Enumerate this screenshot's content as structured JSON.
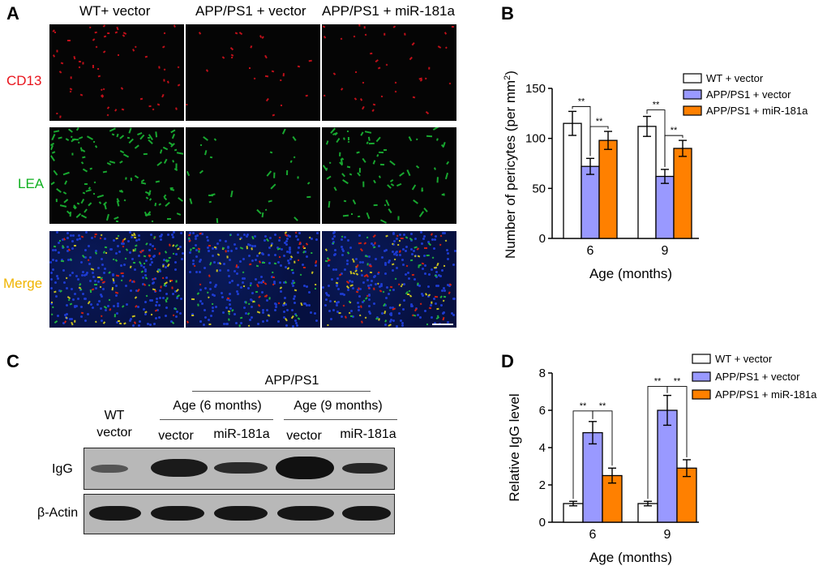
{
  "panels": {
    "a": "A",
    "b": "B",
    "c": "C",
    "d": "D"
  },
  "panel_a": {
    "columns": [
      "WT+ vector",
      "APP/PS1 + vector",
      "APP/PS1 + miR-181a"
    ],
    "rows": [
      {
        "label": "CD13",
        "color": "#e8141c"
      },
      {
        "label": "LEA",
        "color": "#10b020"
      },
      {
        "label": "Merge",
        "color": "#f0b400"
      }
    ]
  },
  "panel_c": {
    "group_title": "APP/PS1",
    "wt_label": "WT",
    "wt_sub": "vector",
    "age6": "Age (6 months)",
    "age9": "Age (9 months)",
    "lane_labels": [
      "vector",
      "miR-181a",
      "vector",
      "miR-181a"
    ],
    "row_labels": [
      "IgG",
      "β-Actin"
    ]
  },
  "chart_data": [
    {
      "type": "bar",
      "id": "B",
      "title": "",
      "categories": [
        "6",
        "9"
      ],
      "xlabel": "Age (months)",
      "ylabel_main": "Number of pericytes (per mm",
      "ylabel_sup": "2",
      "ylabel_end": ")",
      "ylim": [
        0,
        150
      ],
      "yticks": [
        "0",
        "50",
        "100",
        "150"
      ],
      "legend_position": "top-right",
      "series": [
        {
          "name": "WT + vector",
          "color": "#ffffff",
          "values": [
            115,
            112
          ],
          "errors": [
            12,
            10
          ]
        },
        {
          "name": "APP/PS1 + vector",
          "color": "#9999ff",
          "values": [
            72,
            62
          ],
          "errors": [
            8,
            7
          ]
        },
        {
          "name": "APP/PS1 + miR-181a",
          "color": "#ff8000",
          "values": [
            98,
            90
          ],
          "errors": [
            9,
            8
          ]
        }
      ],
      "significance": "**"
    },
    {
      "type": "bar",
      "id": "D",
      "title": "",
      "categories": [
        "6",
        "9"
      ],
      "xlabel": "Age (months)",
      "ylabel_main": "Relative IgG level",
      "ylabel_sup": "",
      "ylabel_end": "",
      "ylim": [
        0,
        8
      ],
      "yticks": [
        "0",
        "2",
        "4",
        "6",
        "8"
      ],
      "legend_position": "top-right",
      "series": [
        {
          "name": "WT + vector",
          "color": "#ffffff",
          "values": [
            1.0,
            1.0
          ],
          "errors": [
            0.12,
            0.12
          ]
        },
        {
          "name": "APP/PS1 + vector",
          "color": "#9999ff",
          "values": [
            4.8,
            6.0
          ],
          "errors": [
            0.6,
            0.8
          ]
        },
        {
          "name": "APP/PS1 + miR-181a",
          "color": "#ff8000",
          "values": [
            2.5,
            2.9
          ],
          "errors": [
            0.4,
            0.45
          ]
        }
      ],
      "significance": "**"
    }
  ]
}
